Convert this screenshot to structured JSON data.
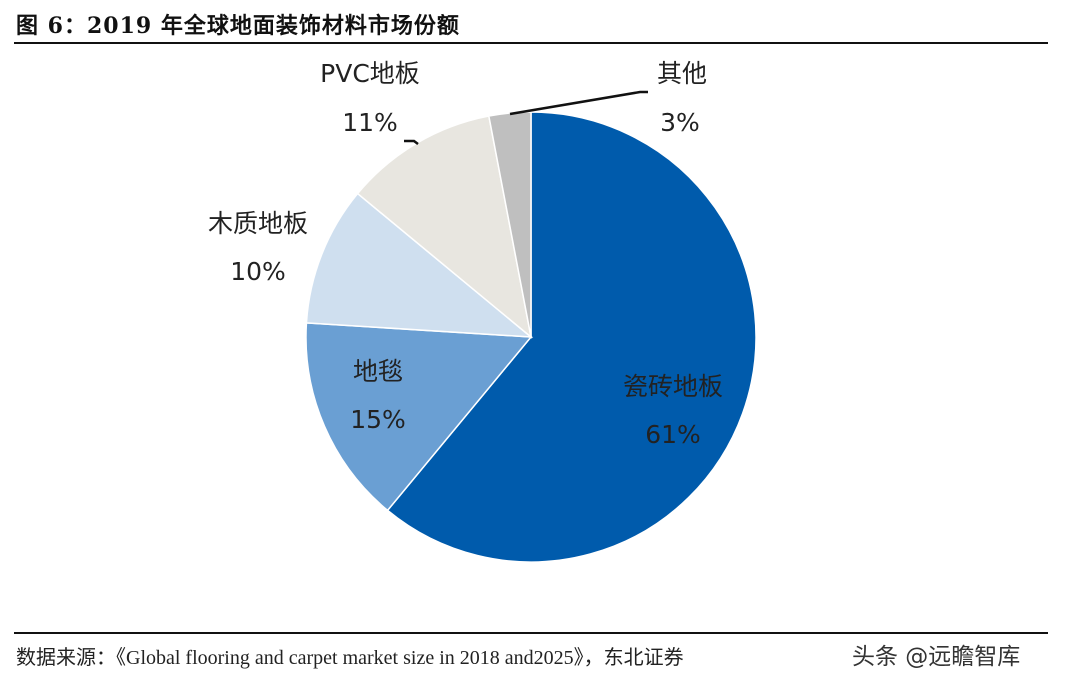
{
  "title": "图 6：2019 年全球地面装饰材料市场份额",
  "source": "数据来源：《Global flooring and carpet market size in 2018 and2025》，东北证券",
  "watermark": "头条 @远瞻智库",
  "chart_data": {
    "type": "pie",
    "start": "12 o'clock, clockwise",
    "categories": [
      "瓷砖地板",
      "地毯",
      "木质地板",
      "PVC地板",
      "其他"
    ],
    "values": [
      61,
      15,
      10,
      11,
      3
    ],
    "value_labels": [
      "61%",
      "15%",
      "10%",
      "11%",
      "3%"
    ],
    "colors": [
      "#005BAC",
      "#6A9FD3",
      "#CFDFEF",
      "#E8E6E0",
      "#BFBFBF"
    ],
    "legend": "none, labels on/near slices"
  }
}
